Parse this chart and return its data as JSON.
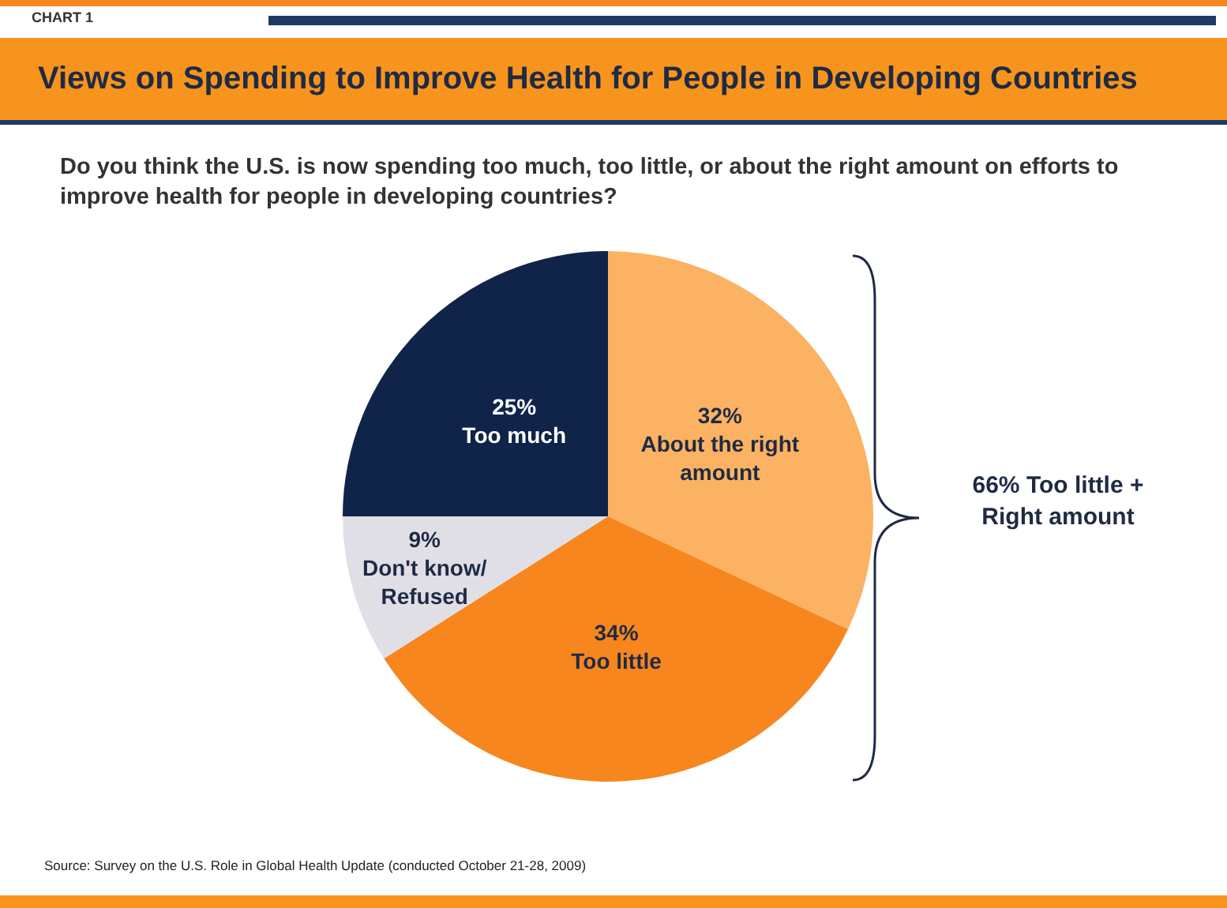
{
  "chart_data": {
    "type": "pie",
    "title": "Views on Spending to Improve Health for People in Developing Countries",
    "subtitle": "Do you think the U.S. is now spending too much, too little, or about the right amount on efforts to improve health for people in developing countries?",
    "categories": [
      "About the right amount",
      "Too little",
      "Don't know/ Refused",
      "Too much"
    ],
    "values": [
      32,
      34,
      9,
      25
    ],
    "colors": [
      "#fbb262",
      "#f7861e",
      "#e0dfe6",
      "#0f2448"
    ],
    "value_labels": [
      "32%",
      "34%",
      "9%",
      "25%"
    ],
    "annotations": [
      "CHART 1",
      "66% Too little + Right amount",
      "Source: Survey on the U.S. Role in Global Health Update (conducted October 21-28, 2009)"
    ]
  }
}
